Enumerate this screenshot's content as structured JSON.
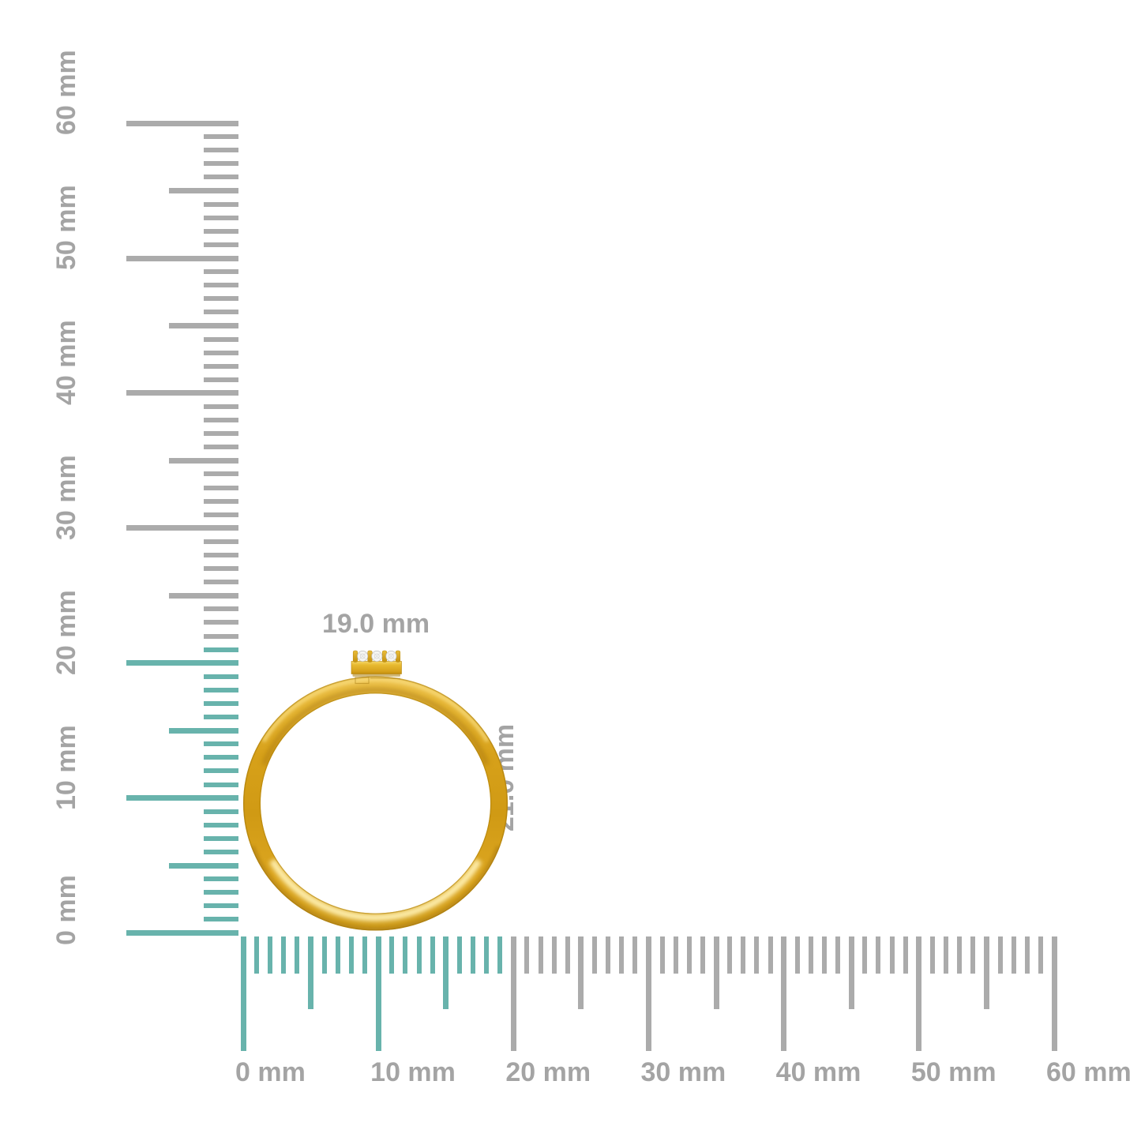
{
  "colors": {
    "tick_highlight": "#68b3ac",
    "tick_default": "#ababab",
    "label_text": "#a4a4a4",
    "gold_band": "#d7a11b",
    "gold_light": "#f6d96e",
    "gold_dark": "#a87c08",
    "diamond": "#f6f6f3"
  },
  "rulers": {
    "vertical": {
      "unit": "mm",
      "min": 0,
      "max": 60,
      "major_step": 10,
      "mid_step": 5,
      "minor_step": 1,
      "highlighted_span_mm": 21,
      "major_labels": [
        "0 mm",
        "10 mm",
        "20 mm",
        "30 mm",
        "40 mm",
        "50 mm",
        "60 mm"
      ]
    },
    "horizontal": {
      "unit": "mm",
      "min": 0,
      "max": 60,
      "major_step": 10,
      "mid_step": 5,
      "minor_step": 1,
      "highlighted_span_mm": 19,
      "major_labels": [
        "0 mm",
        "10 mm",
        "20 mm",
        "30 mm",
        "40 mm",
        "50 mm",
        "60 mm"
      ]
    }
  },
  "object": {
    "type": "gold-ring-with-diamonds",
    "width_label": "19.0 mm",
    "height_label": "21.0 mm",
    "gem_count": 3
  }
}
